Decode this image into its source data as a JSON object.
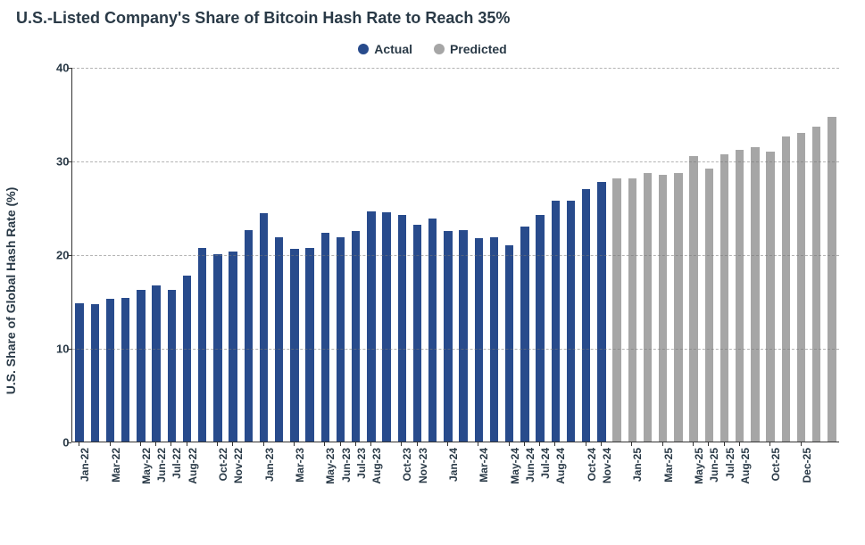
{
  "title": "U.S.-Listed Company's Share of Bitcoin Hash Rate to Reach 35%",
  "legend": {
    "series": [
      {
        "label": "Actual",
        "color": "#284b8c"
      },
      {
        "label": "Predicted",
        "color": "#a6a6a6"
      }
    ]
  },
  "chart": {
    "type": "bar",
    "ylabel": "U.S. Share of Global Hash Rate (%)",
    "ylim": [
      0,
      40
    ],
    "ytick_step": 10,
    "grid_color": "#777777",
    "background_color": "#ffffff",
    "axis_color": "#333333",
    "bar_width_ratio": 0.55,
    "title_fontsize": 18,
    "label_fontsize": 14,
    "tick_fontsize": 12,
    "colors": {
      "actual": "#284b8c",
      "predicted": "#a6a6a6"
    },
    "x_labels_visible": [
      "Jan-22",
      "Mar-22",
      "May-22",
      "Jun-22",
      "Jul-22",
      "Aug-22",
      "Oct-22",
      "Nov-22",
      "Jan-23",
      "Mar-23",
      "May-23",
      "Jun-23",
      "Jul-23",
      "Aug-23",
      "Oct-23",
      "Nov-23",
      "Jan-24",
      "Mar-24",
      "May-24",
      "Jun-24",
      "Jul-24",
      "Aug-24",
      "Oct-24",
      "Nov-24",
      "Jan-25",
      "Mar-25",
      "May-25",
      "Jun-25",
      "Jul-25",
      "Aug-25",
      "Oct-25",
      "Dec-25"
    ],
    "data": [
      {
        "label": "Jan-22",
        "value": 14.8,
        "series": "actual",
        "show_xlabel": true
      },
      {
        "label": "Feb-22",
        "value": 14.7,
        "series": "actual",
        "show_xlabel": false
      },
      {
        "label": "Mar-22",
        "value": 15.2,
        "series": "actual",
        "show_xlabel": true
      },
      {
        "label": "Apr-22",
        "value": 15.3,
        "series": "actual",
        "show_xlabel": false
      },
      {
        "label": "May-22",
        "value": 16.2,
        "series": "actual",
        "show_xlabel": true
      },
      {
        "label": "Jun-22",
        "value": 16.7,
        "series": "actual",
        "show_xlabel": true
      },
      {
        "label": "Jul-22",
        "value": 16.2,
        "series": "actual",
        "show_xlabel": true
      },
      {
        "label": "Aug-22",
        "value": 17.7,
        "series": "actual",
        "show_xlabel": true
      },
      {
        "label": "Sep-22",
        "value": 20.7,
        "series": "actual",
        "show_xlabel": false
      },
      {
        "label": "Oct-22",
        "value": 20.0,
        "series": "actual",
        "show_xlabel": true
      },
      {
        "label": "Nov-22",
        "value": 20.3,
        "series": "actual",
        "show_xlabel": true
      },
      {
        "label": "Dec-22",
        "value": 22.6,
        "series": "actual",
        "show_xlabel": false
      },
      {
        "label": "Jan-23",
        "value": 24.4,
        "series": "actual",
        "show_xlabel": true
      },
      {
        "label": "Feb-23",
        "value": 21.8,
        "series": "actual",
        "show_xlabel": false
      },
      {
        "label": "Mar-23",
        "value": 20.6,
        "series": "actual",
        "show_xlabel": true
      },
      {
        "label": "Apr-23",
        "value": 20.7,
        "series": "actual",
        "show_xlabel": false
      },
      {
        "label": "May-23",
        "value": 22.3,
        "series": "actual",
        "show_xlabel": true
      },
      {
        "label": "Jun-23",
        "value": 21.8,
        "series": "actual",
        "show_xlabel": true
      },
      {
        "label": "Jul-23",
        "value": 22.5,
        "series": "actual",
        "show_xlabel": true
      },
      {
        "label": "Aug-23",
        "value": 24.6,
        "series": "actual",
        "show_xlabel": true
      },
      {
        "label": "Sep-23",
        "value": 24.5,
        "series": "actual",
        "show_xlabel": false
      },
      {
        "label": "Oct-23",
        "value": 24.2,
        "series": "actual",
        "show_xlabel": true
      },
      {
        "label": "Nov-23",
        "value": 23.1,
        "series": "actual",
        "show_xlabel": true
      },
      {
        "label": "Dec-23",
        "value": 23.8,
        "series": "actual",
        "show_xlabel": false
      },
      {
        "label": "Jan-24",
        "value": 22.5,
        "series": "actual",
        "show_xlabel": true
      },
      {
        "label": "Feb-24",
        "value": 22.6,
        "series": "actual",
        "show_xlabel": false
      },
      {
        "label": "Mar-24",
        "value": 21.7,
        "series": "actual",
        "show_xlabel": true
      },
      {
        "label": "Apr-24",
        "value": 21.8,
        "series": "actual",
        "show_xlabel": false
      },
      {
        "label": "May-24",
        "value": 21.0,
        "series": "actual",
        "show_xlabel": true
      },
      {
        "label": "Jun-24",
        "value": 23.0,
        "series": "actual",
        "show_xlabel": true
      },
      {
        "label": "Jul-24",
        "value": 24.2,
        "series": "actual",
        "show_xlabel": true
      },
      {
        "label": "Aug-24",
        "value": 25.7,
        "series": "actual",
        "show_xlabel": true
      },
      {
        "label": "Sep-24",
        "value": 25.7,
        "series": "actual",
        "show_xlabel": false
      },
      {
        "label": "Oct-24",
        "value": 27.0,
        "series": "actual",
        "show_xlabel": true
      },
      {
        "label": "Nov-24",
        "value": 27.7,
        "series": "actual",
        "show_xlabel": true
      },
      {
        "label": "Dec-24",
        "value": 28.1,
        "series": "predicted",
        "show_xlabel": false
      },
      {
        "label": "Jan-25",
        "value": 28.1,
        "series": "predicted",
        "show_xlabel": true
      },
      {
        "label": "Feb-25",
        "value": 28.7,
        "series": "predicted",
        "show_xlabel": false
      },
      {
        "label": "Mar-25",
        "value": 28.5,
        "series": "predicted",
        "show_xlabel": true
      },
      {
        "label": "Apr-25",
        "value": 28.7,
        "series": "predicted",
        "show_xlabel": false
      },
      {
        "label": "May-25",
        "value": 30.5,
        "series": "predicted",
        "show_xlabel": true
      },
      {
        "label": "Jun-25",
        "value": 29.1,
        "series": "predicted",
        "show_xlabel": true
      },
      {
        "label": "Jul-25",
        "value": 30.7,
        "series": "predicted",
        "show_xlabel": true
      },
      {
        "label": "Aug-25",
        "value": 31.1,
        "series": "predicted",
        "show_xlabel": true
      },
      {
        "label": "Sep-25",
        "value": 31.4,
        "series": "predicted",
        "show_xlabel": false
      },
      {
        "label": "Oct-25",
        "value": 31.0,
        "series": "predicted",
        "show_xlabel": true
      },
      {
        "label": "Nov-25",
        "value": 32.6,
        "series": "predicted",
        "show_xlabel": false
      },
      {
        "label": "Dec-25",
        "value": 33.0,
        "series": "predicted",
        "show_xlabel": true
      },
      {
        "label": "Jan-26",
        "value": 33.6,
        "series": "predicted",
        "show_xlabel": false
      },
      {
        "label": "Feb-26",
        "value": 34.7,
        "series": "predicted",
        "show_xlabel": false
      }
    ]
  }
}
